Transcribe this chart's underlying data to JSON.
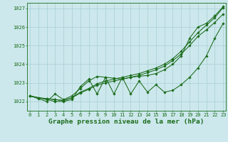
{
  "title": "Graphe pression niveau de la mer (hPa)",
  "xlabel_hours": [
    0,
    1,
    2,
    3,
    4,
    5,
    6,
    7,
    8,
    9,
    10,
    11,
    12,
    13,
    14,
    15,
    16,
    17,
    18,
    19,
    20,
    21,
    22,
    23
  ],
  "line_smooth1": [
    1022.3,
    1022.2,
    1022.15,
    1022.1,
    1022.05,
    1022.2,
    1022.5,
    1022.7,
    1022.95,
    1023.1,
    1023.2,
    1023.3,
    1023.4,
    1023.5,
    1023.65,
    1023.8,
    1024.0,
    1024.3,
    1024.7,
    1025.2,
    1025.7,
    1026.1,
    1026.5,
    1027.05
  ],
  "line_smooth2": [
    1022.3,
    1022.2,
    1022.15,
    1022.1,
    1022.05,
    1022.2,
    1022.45,
    1022.65,
    1022.88,
    1023.0,
    1023.1,
    1023.2,
    1023.3,
    1023.4,
    1023.55,
    1023.7,
    1023.9,
    1024.2,
    1024.55,
    1025.0,
    1025.5,
    1025.85,
    1026.25,
    1026.7
  ],
  "line_zigzag": [
    1022.3,
    1022.2,
    1022.1,
    1022.0,
    1022.0,
    1022.1,
    1022.8,
    1023.2,
    1022.4,
    1023.3,
    1022.4,
    1023.3,
    1022.4,
    1023.1,
    1022.5,
    1022.9,
    1022.5,
    1022.6,
    1022.9,
    1023.3,
    1023.8,
    1024.45,
    1025.4,
    1026.2
  ],
  "line_high": [
    1022.3,
    1022.15,
    1022.0,
    1022.4,
    1022.1,
    1022.3,
    1022.7,
    1023.1,
    1023.35,
    1023.3,
    1023.25,
    1023.2,
    1023.3,
    1023.35,
    1023.4,
    1023.5,
    1023.7,
    1024.0,
    1024.45,
    1025.4,
    1026.0,
    1026.2,
    1026.6,
    1027.1
  ],
  "ylim": [
    1021.5,
    1027.3
  ],
  "yticks": [
    1022,
    1023,
    1024,
    1025,
    1026,
    1027
  ],
  "line_color": "#1a6b1a",
  "bg_color": "#cce8ec",
  "grid_color": "#a8cdd4",
  "title_color": "#1a6b1a",
  "title_fontsize": 6.8,
  "tick_fontsize": 5.0,
  "figwidth": 3.2,
  "figheight": 2.0,
  "dpi": 100
}
